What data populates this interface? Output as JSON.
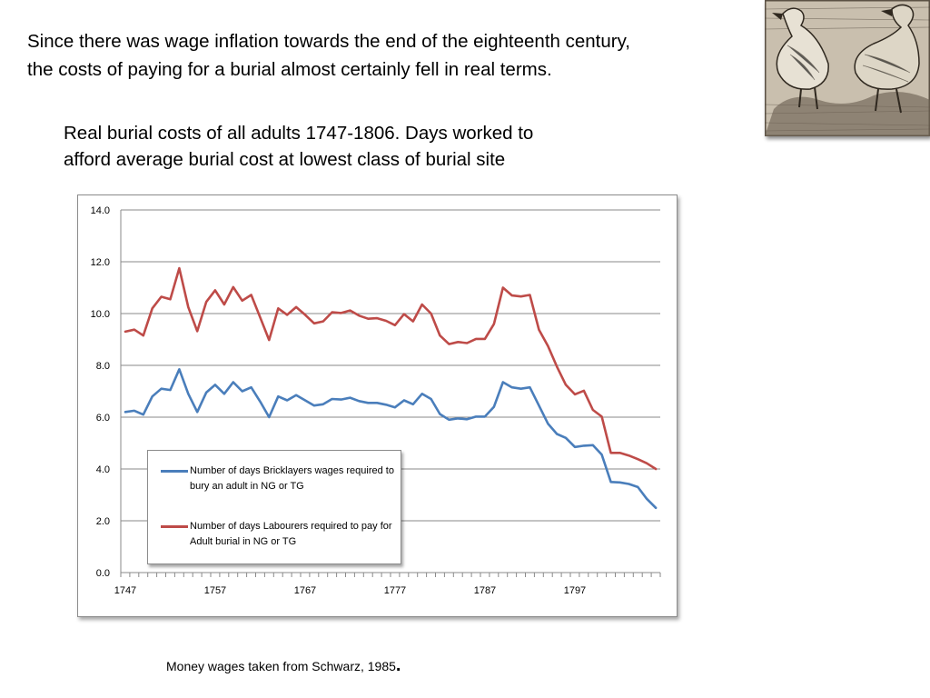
{
  "headline": {
    "line1": "Since there was wage inflation towards the end of the eighteenth century,",
    "line2": "the costs of paying for a burial almost certainly fell in real terms."
  },
  "chart_title": {
    "line1": "Real burial costs of all adults 1747-1806. Days worked to",
    "line2": "afford average burial cost at lowest class of burial site"
  },
  "image": {
    "icon": "ducks-engraving"
  },
  "source_note": {
    "text": "Money wages taken from Schwarz, 1985",
    "punct": "."
  },
  "chart_data": {
    "type": "line",
    "ylim": [
      0,
      14
    ],
    "y_ticks": [
      "0.0",
      "2.0",
      "4.0",
      "6.0",
      "8.0",
      "10.0",
      "12.0",
      "14.0"
    ],
    "x_tick_labels": [
      "1747",
      "1757",
      "1767",
      "1777",
      "1787",
      "1797"
    ],
    "x": [
      1747,
      1748,
      1749,
      1750,
      1751,
      1752,
      1753,
      1754,
      1755,
      1756,
      1757,
      1758,
      1759,
      1760,
      1761,
      1762,
      1763,
      1764,
      1765,
      1766,
      1767,
      1768,
      1769,
      1770,
      1771,
      1772,
      1773,
      1774,
      1775,
      1776,
      1777,
      1778,
      1779,
      1780,
      1781,
      1782,
      1783,
      1784,
      1785,
      1786,
      1787,
      1788,
      1789,
      1790,
      1791,
      1792,
      1793,
      1794,
      1795,
      1796,
      1797,
      1798,
      1799,
      1800,
      1801,
      1802,
      1803,
      1804,
      1805,
      1806
    ],
    "grid": true,
    "legend_position": "bottom-left",
    "series": [
      {
        "name": "Number of days Bricklayers wages required to bury an adult in NG or TG",
        "color": "#4a7ebb",
        "values": [
          6.2,
          6.25,
          6.1,
          6.8,
          7.1,
          7.05,
          7.85,
          6.9,
          6.2,
          6.95,
          7.25,
          6.9,
          7.35,
          7.0,
          7.15,
          6.6,
          6.0,
          6.8,
          6.65,
          6.85,
          6.65,
          6.45,
          6.5,
          6.7,
          6.68,
          6.75,
          6.62,
          6.55,
          6.55,
          6.48,
          6.38,
          6.65,
          6.5,
          6.9,
          6.7,
          6.12,
          5.9,
          5.95,
          5.92,
          6.02,
          6.02,
          6.4,
          7.35,
          7.15,
          7.1,
          7.15,
          6.45,
          5.75,
          5.35,
          5.2,
          4.85,
          4.9,
          4.92,
          4.55,
          3.5,
          3.48,
          3.42,
          3.3,
          2.85,
          2.5
        ]
      },
      {
        "name": "Number of days Labourers required to pay for Adult burial in NG or TG",
        "color": "#be4b48",
        "values": [
          9.3,
          9.38,
          9.15,
          10.2,
          10.65,
          10.55,
          11.75,
          10.25,
          9.32,
          10.45,
          10.9,
          10.35,
          11.02,
          10.5,
          10.72,
          9.85,
          8.98,
          10.2,
          9.95,
          10.25,
          9.95,
          9.62,
          9.7,
          10.05,
          10.02,
          10.12,
          9.92,
          9.8,
          9.82,
          9.72,
          9.55,
          9.98,
          9.7,
          10.35,
          10.0,
          9.15,
          8.82,
          8.9,
          8.86,
          9.02,
          9.02,
          9.6,
          11.0,
          10.7,
          10.66,
          10.72,
          9.38,
          8.75,
          7.95,
          7.25,
          6.88,
          7.02,
          6.28,
          6.02,
          4.62,
          4.62,
          4.52,
          4.38,
          4.22,
          4.0
        ]
      }
    ]
  }
}
